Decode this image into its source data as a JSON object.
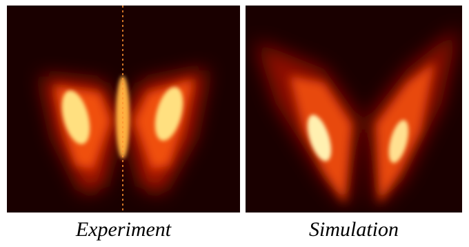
{
  "panels": [
    {
      "caption": "Experiment"
    },
    {
      "caption": "Simulation"
    }
  ]
}
